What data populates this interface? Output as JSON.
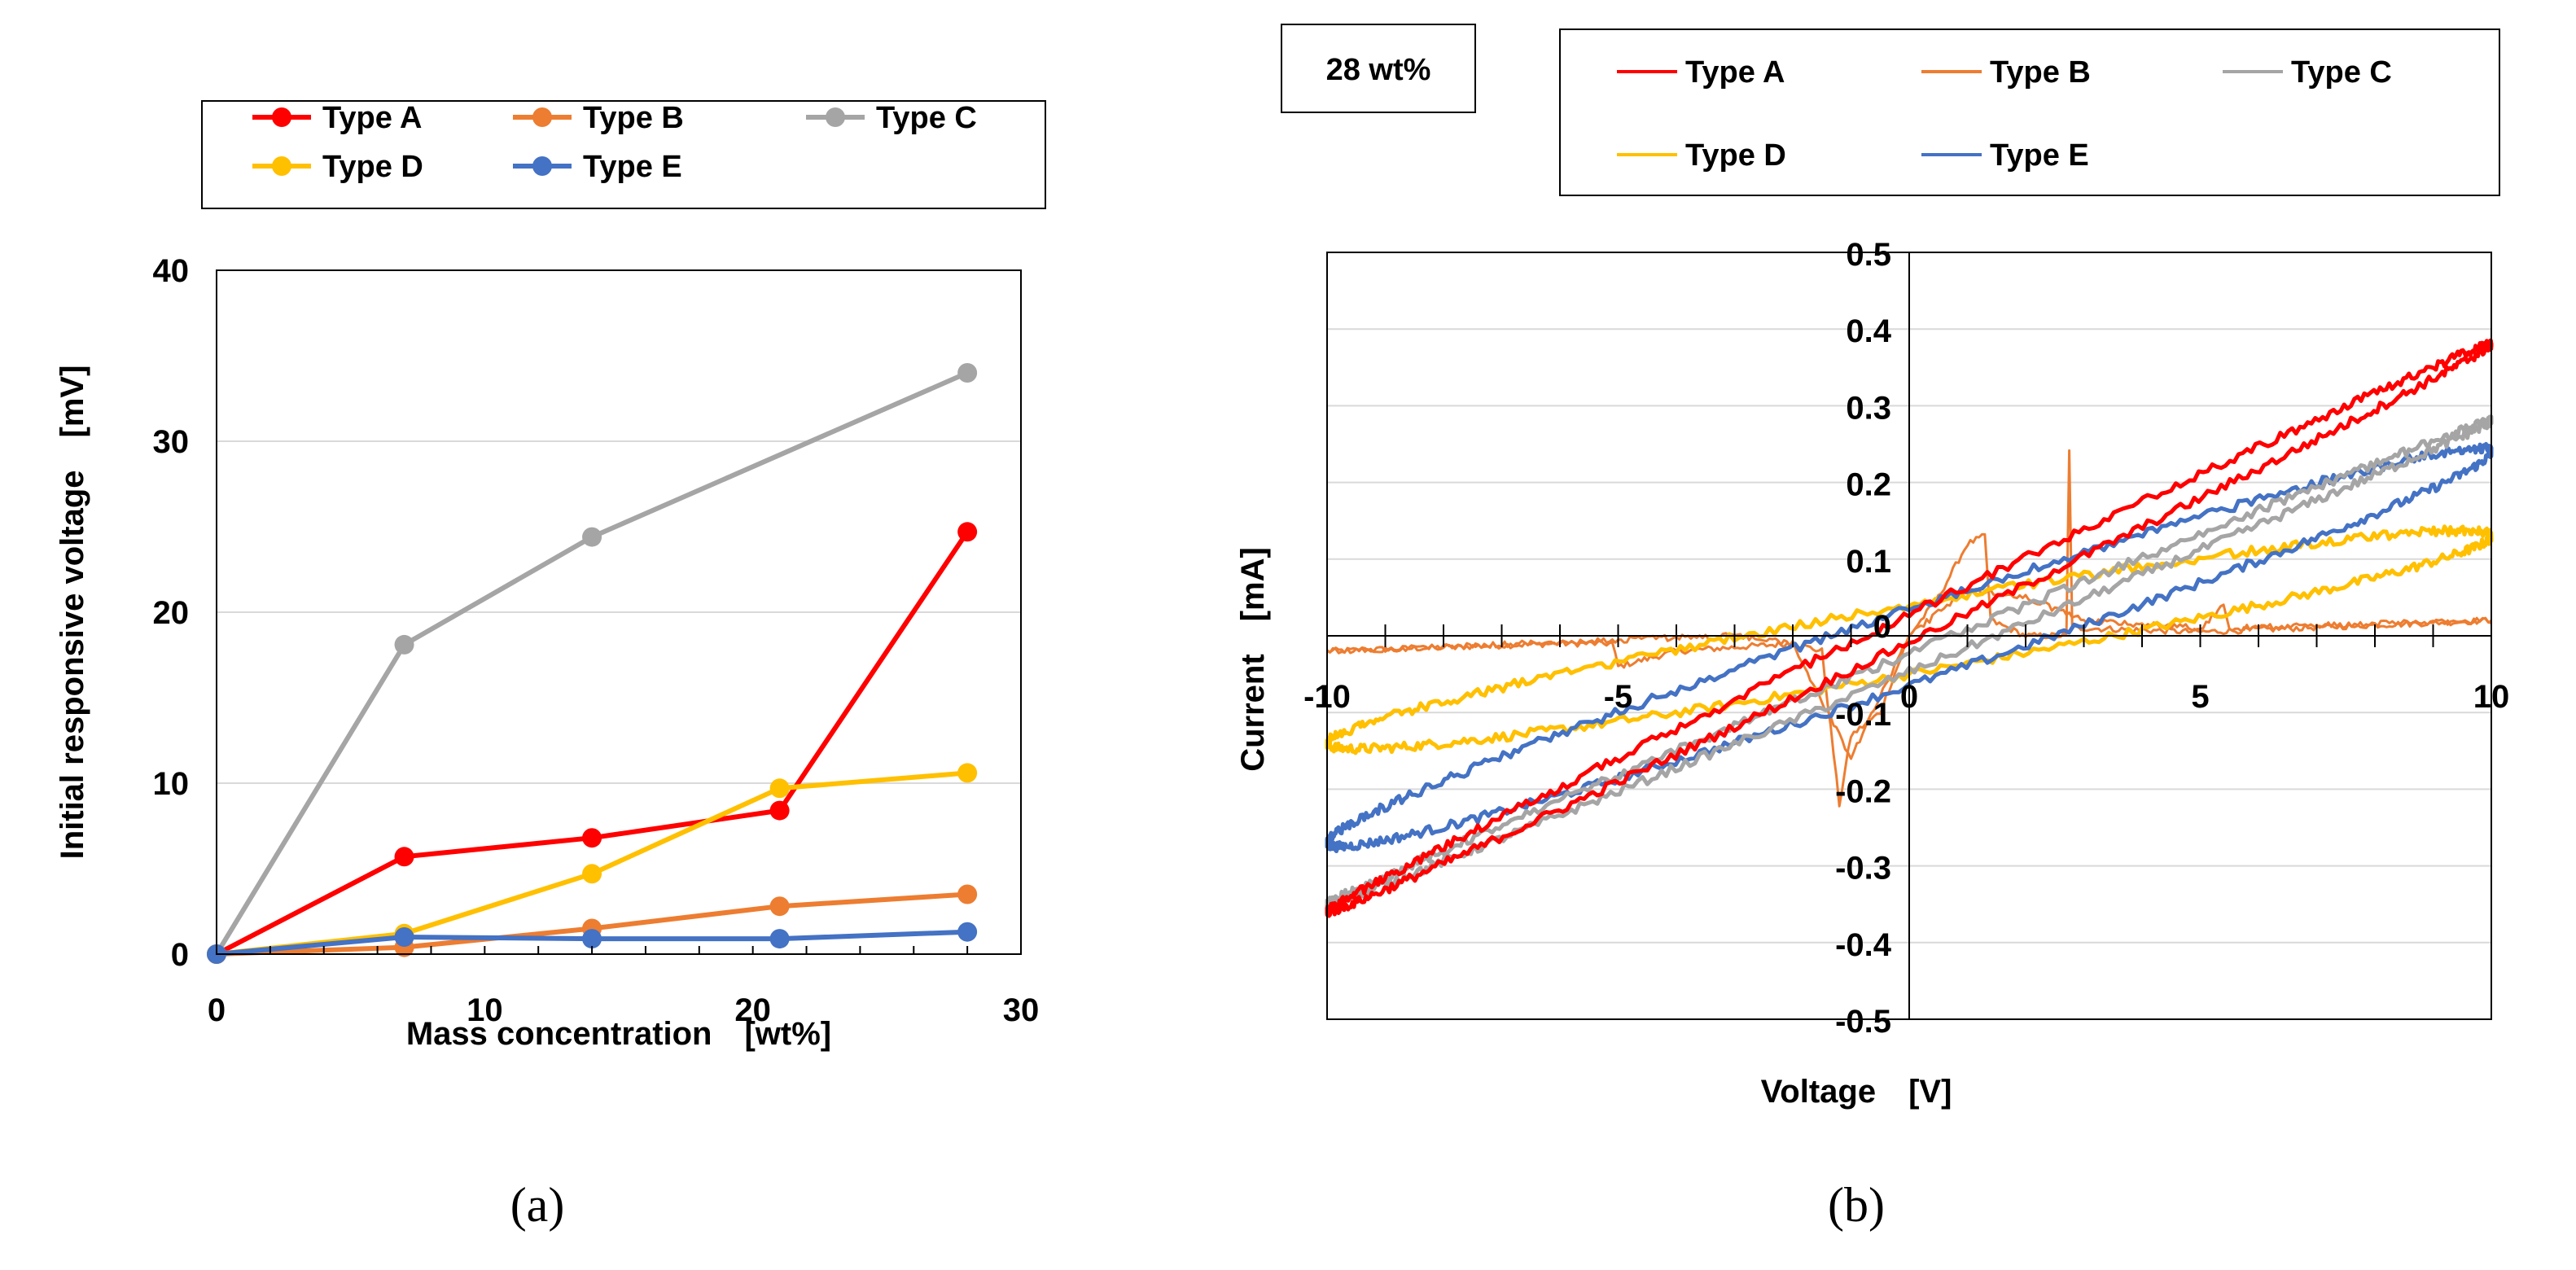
{
  "chart_data": [
    {
      "type": "line",
      "panel_label": "(a)",
      "xlabel": "Mass concentration　[wt%]",
      "ylabel": "Initial responsive voltage　[mV]",
      "xlim": [
        0,
        30
      ],
      "ylim": [
        0,
        40
      ],
      "xticks": [
        0,
        10,
        20,
        30
      ],
      "yticks": [
        0,
        10,
        20,
        30,
        40
      ],
      "grid": "horizontal",
      "legend": "top (outside, boxed)",
      "series": [
        {
          "name": "Type A",
          "color": "#FF0000",
          "x": [
            0,
            7,
            14,
            21,
            28
          ],
          "y": [
            0,
            5.7,
            6.8,
            8.4,
            24.7
          ]
        },
        {
          "name": "Type B",
          "color": "#ED7D31",
          "x": [
            0,
            7,
            14,
            21,
            28
          ],
          "y": [
            0,
            0.4,
            1.5,
            2.8,
            3.5
          ]
        },
        {
          "name": "Type C",
          "color": "#A5A5A5",
          "x": [
            0,
            7,
            14,
            28
          ],
          "y": [
            0,
            18.1,
            24.4,
            34.0
          ]
        },
        {
          "name": "Type D",
          "color": "#FFC000",
          "x": [
            0,
            7,
            14,
            21,
            28
          ],
          "y": [
            0,
            1.2,
            4.7,
            9.7,
            10.6
          ]
        },
        {
          "name": "Type E",
          "color": "#4472C4",
          "x": [
            0,
            7,
            14,
            21,
            28
          ],
          "y": [
            0,
            1.0,
            0.9,
            0.9,
            1.3
          ]
        }
      ]
    },
    {
      "type": "line",
      "panel_label": "(b)",
      "annotation": "28 wt%",
      "xlabel": "Voltage　[V]",
      "ylabel": "Current　[mA]",
      "xlim": [
        -10,
        10
      ],
      "ylim": [
        -0.5,
        0.5
      ],
      "xticks": [
        -10,
        -5,
        0,
        5,
        10
      ],
      "xtick_labels": [
        "-10",
        "-5",
        "0",
        "5",
        "10"
      ],
      "yticks": [
        0.5,
        0.4,
        0.3,
        0.2,
        0.1,
        0,
        -0.1,
        -0.2,
        -0.3,
        -0.4,
        -0.5
      ],
      "ytick_labels": [
        "0.5",
        "0.4",
        "0.3",
        "0.2",
        "0.1",
        "0",
        "-0.1",
        "-0.2",
        "-0.3",
        "-0.4",
        "-0.5"
      ],
      "grid": "horizontal",
      "legend": "top (outside, boxed)",
      "series": [
        {
          "name": "Type A",
          "color": "#FF0000",
          "current_at_minus10": -0.36,
          "current_at_plus10": 0.38,
          "loop_halfwidth": 0.018
        },
        {
          "name": "Type B",
          "color": "#ED7D31",
          "forward": {
            "V": [
              -10,
              -6,
              -5.1,
              -5,
              -4,
              -2,
              -1.5,
              -1.2,
              -1,
              -0.5,
              0,
              0.5,
              1,
              1.3,
              1.4,
              2,
              2.7,
              2.75,
              2.8,
              3,
              5,
              10
            ],
            "I": [
              -0.02,
              -0.01,
              -0.01,
              -0.04,
              -0.02,
              -0.01,
              -0.02,
              -0.22,
              -0.13,
              -0.1,
              0.0,
              0.05,
              0.12,
              0.13,
              0.02,
              0.0,
              0.0,
              0.24,
              0.01,
              0.01,
              0.005,
              0.02
            ]
          },
          "backward": {
            "V": [
              10,
              5.5,
              5.4,
              5,
              3,
              2,
              1,
              0,
              -0.5,
              -1,
              -2,
              -3,
              -5,
              -10
            ],
            "I": [
              0.02,
              0.01,
              0.04,
              0.01,
              0.02,
              0.05,
              0.06,
              0.0,
              -0.08,
              -0.16,
              -0.01,
              0.0,
              -0.005,
              -0.02
            ]
          }
        },
        {
          "name": "Type C",
          "color": "#A5A5A5",
          "current_at_minus10": -0.35,
          "current_at_plus10": 0.28,
          "loop_halfwidth": 0.012
        },
        {
          "name": "Type D",
          "color": "#FFC000",
          "current_at_minus10": -0.14,
          "current_at_plus10": 0.13,
          "loop_halfwidth": 0.045
        },
        {
          "name": "Type E",
          "color": "#4472C4",
          "current_at_minus10": -0.27,
          "current_at_plus10": 0.24,
          "loop_halfwidth": 0.05
        }
      ]
    }
  ]
}
